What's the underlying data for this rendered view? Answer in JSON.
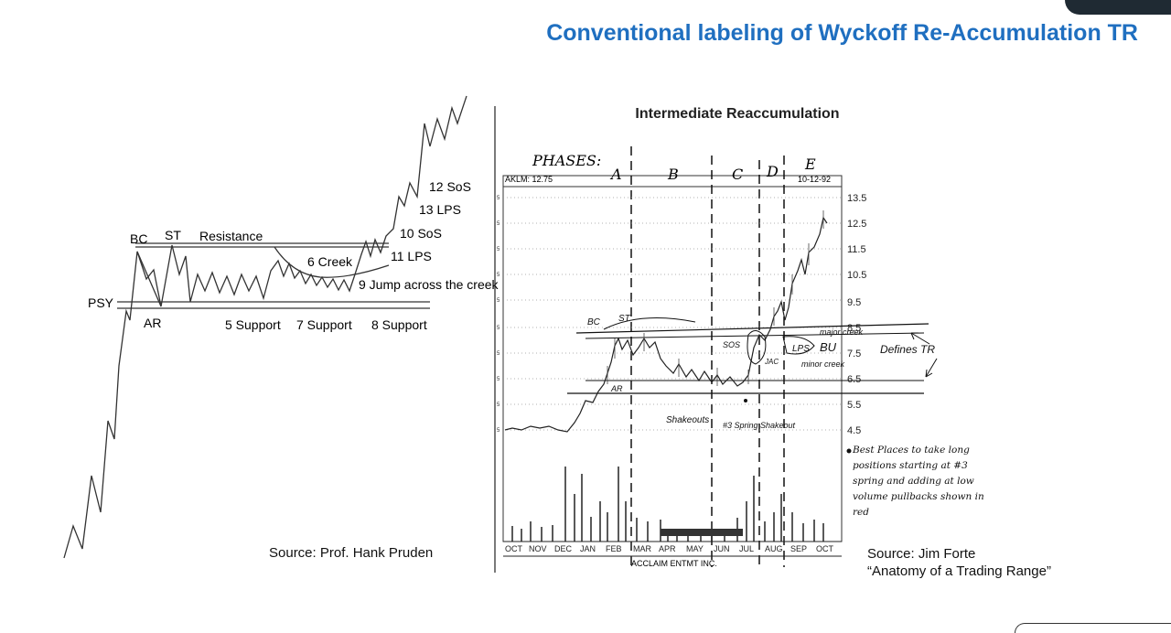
{
  "slide_title": "Conventional labeling of Wyckoff Re-Accumulation TR",
  "left_chart": {
    "labels": {
      "bc": "BC",
      "st": "ST",
      "resistance": "Resistance",
      "psy": "PSY",
      "ar": "AR",
      "creek6": "6 Creek",
      "support5": "5 Support",
      "support7": "7 Support",
      "support8": "8 Support",
      "jump9": "9 Jump across the creek",
      "sos10": "10 SoS",
      "lps11": "11 LPS",
      "sos12": "12 SoS",
      "lps13": "13 LPS"
    },
    "source": "Source: Prof. Hank Pruden"
  },
  "right_chart": {
    "title": "Intermediate Reaccumulation",
    "phases_label": "PHASES:",
    "phases": [
      "A",
      "B",
      "C",
      "D",
      "E"
    ],
    "symbol": "AKLM: 12.75",
    "date": "10-12-92",
    "price_ticks": [
      "13.5",
      "12.5",
      "11.5",
      "10.5",
      "9.5",
      "8.5",
      "7.5",
      "6.5",
      "5.5",
      "4.5"
    ],
    "months": [
      "OCT",
      "NOV",
      "DEC",
      "JAN",
      "FEB",
      "MAR",
      "APR",
      "MAY",
      "JUN",
      "JUL",
      "AUG",
      "SEP",
      "OCT"
    ],
    "company": "ACCLAIM ENTMT INC.",
    "annotations": {
      "bc": "BC",
      "st": "ST",
      "ar": "AR",
      "shakeouts": "Shakeouts",
      "spring": "#3 Spring Shakeout",
      "sos": "SOS",
      "lps": "LPS",
      "bu": "BU",
      "major_creek": "major creek",
      "minor_creek": "minor creek",
      "jac": "JAC",
      "defines_tr": "Defines TR",
      "best_places": "Best Places to take long positions starting at #3 spring and adding at low volume pullbacks shown in red"
    },
    "source_line1": "Source: Jim Forte",
    "source_line2": "“Anatomy of a Trading Range”"
  }
}
